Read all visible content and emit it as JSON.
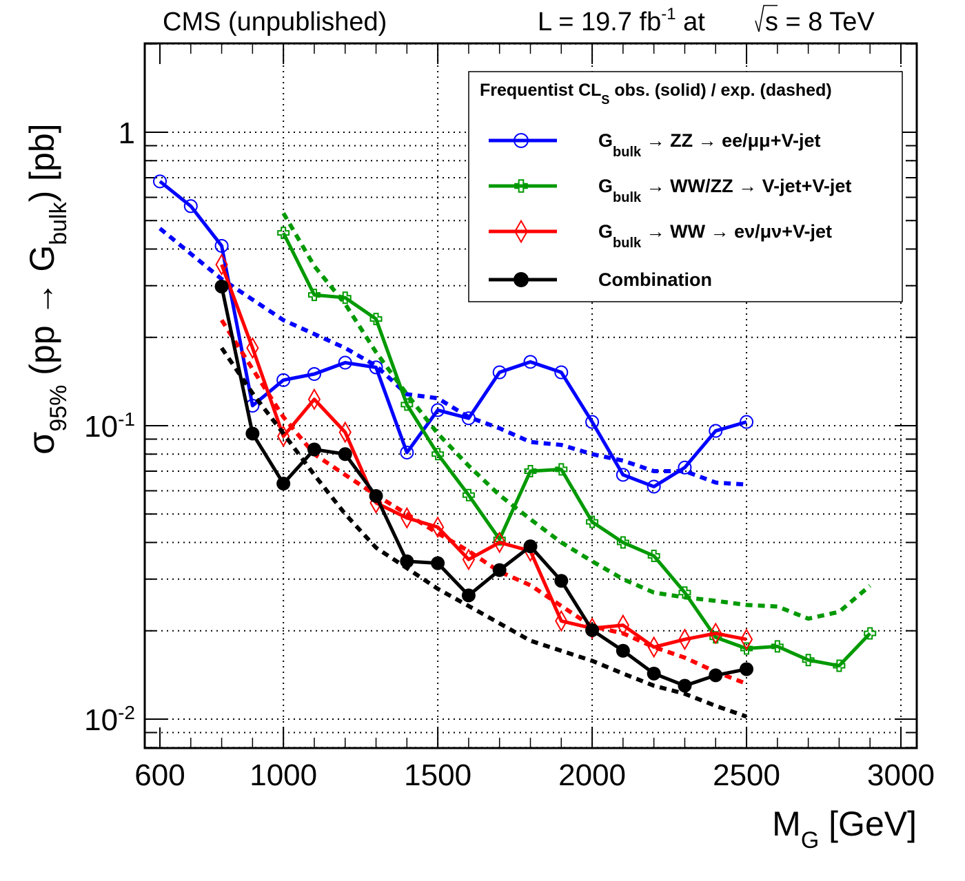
{
  "header": {
    "left": "CMS (unpublished)",
    "right_prefix": "L = 19.7 fb",
    "right_sup": "-1",
    "right_mid": " at ",
    "right_sqrt": "s = 8 TeV"
  },
  "chart_data": {
    "type": "line",
    "title": "",
    "xlabel": "M_G [GeV]",
    "xlabel_main": "M",
    "xlabel_sub": "G",
    "xlabel_unit": " [GeV]",
    "ylabel": "σ95% (pp → Gbulk) [pb]",
    "ylabel_parts": {
      "sigma": "σ",
      "sub95": "95%",
      "mid": " (pp → G",
      "subbulk": "bulk",
      "end": ") [pb]"
    },
    "xlim": [
      550,
      3050
    ],
    "ylim": [
      0.0085,
      2.0
    ],
    "yscale": "log",
    "grid": true,
    "x_ticks": [
      600,
      1000,
      1500,
      2000,
      2500,
      3000
    ],
    "x_tick_labels": [
      "600",
      "1000",
      "1500",
      "2000",
      "2500",
      "3000"
    ],
    "y_ticks": [
      1,
      0.1,
      0.01
    ],
    "y_tick_labels": [
      {
        "base": "1",
        "exp": ""
      },
      {
        "base": "10",
        "exp": "-1"
      },
      {
        "base": "10",
        "exp": "-2"
      }
    ],
    "legend": {
      "position": "top-right",
      "title_main": "Frequentist CL",
      "title_sub": "S",
      "title_rest": " obs. (solid) / exp. (dashed)"
    },
    "series": [
      {
        "name": "Gbulk → ZZ → ee/μμ+V-jet",
        "label_main": "G",
        "label_sub": "bulk",
        "label_rest": " → ZZ → ee/μμ+V-jet",
        "color": "#0000ff",
        "marker": "open-circle",
        "observed": {
          "x": [
            600,
            700,
            800,
            900,
            1000,
            1100,
            1200,
            1300,
            1400,
            1500,
            1600,
            1700,
            1800,
            1900,
            2000,
            2100,
            2200,
            2300,
            2400,
            2500
          ],
          "y": [
            0.68,
            0.56,
            0.41,
            0.117,
            0.143,
            0.15,
            0.164,
            0.158,
            0.081,
            0.113,
            0.106,
            0.152,
            0.165,
            0.152,
            0.103,
            0.068,
            0.062,
            0.072,
            0.096,
            0.103
          ]
        },
        "expected": {
          "x": [
            600,
            800,
            1000,
            1200,
            1300,
            1400,
            1500,
            1600,
            1700,
            1800,
            1900,
            2000,
            2100,
            2200,
            2300,
            2400,
            2500
          ],
          "y": [
            0.47,
            0.316,
            0.229,
            0.184,
            0.16,
            0.128,
            0.124,
            0.107,
            0.098,
            0.088,
            0.086,
            0.08,
            0.076,
            0.07,
            0.07,
            0.064,
            0.063
          ]
        }
      },
      {
        "name": "Gbulk → WW/ZZ → V-jet+V-jet",
        "label_main": "G",
        "label_sub": "bulk",
        "label_rest": " → WW/ZZ → V-jet+V-jet",
        "color": "#009900",
        "marker": "open-cross",
        "observed": {
          "x": [
            1000,
            1100,
            1200,
            1300,
            1400,
            1500,
            1600,
            1700,
            1800,
            1900,
            2000,
            2100,
            2200,
            2300,
            2400,
            2500,
            2600,
            2700,
            2800,
            2900
          ],
          "y": [
            0.454,
            0.279,
            0.273,
            0.231,
            0.118,
            0.08,
            0.058,
            0.041,
            0.07,
            0.071,
            0.047,
            0.04,
            0.036,
            0.027,
            0.019,
            0.0174,
            0.0177,
            0.0159,
            0.0152,
            0.0196
          ]
        },
        "expected": {
          "x": [
            1000,
            1100,
            1200,
            1300,
            1400,
            1500,
            1600,
            1700,
            1800,
            1900,
            2000,
            2100,
            2200,
            2300,
            2400,
            2500,
            2600,
            2700,
            2800,
            2900
          ],
          "y": [
            0.53,
            0.35,
            0.26,
            0.178,
            0.128,
            0.094,
            0.073,
            0.058,
            0.048,
            0.04,
            0.0345,
            0.03,
            0.027,
            0.026,
            0.0253,
            0.0245,
            0.0242,
            0.022,
            0.0232,
            0.0285
          ]
        }
      },
      {
        "name": "Gbulk → WW → eν/μν+V-jet",
        "label_main": "G",
        "label_sub": "bulk",
        "label_rest": " → WW → eν/μν+V-jet",
        "color": "#ff0000",
        "marker": "open-diamond",
        "observed": {
          "x": [
            800,
            900,
            1000,
            1100,
            1200,
            1300,
            1400,
            1500,
            1600,
            1700,
            1800,
            1900,
            2000,
            2100,
            2200,
            2300,
            2400,
            2500
          ],
          "y": [
            0.354,
            0.184,
            0.092,
            0.123,
            0.095,
            0.0546,
            0.0485,
            0.0451,
            0.035,
            0.04,
            0.0374,
            0.0216,
            0.0204,
            0.0209,
            0.0176,
            0.0187,
            0.0196,
            0.0187
          ]
        },
        "expected": {
          "x": [
            800,
            900,
            1000,
            1100,
            1200,
            1300,
            1400,
            1500,
            1600,
            1700,
            1800,
            1900,
            2000,
            2100,
            2200,
            2300,
            2400,
            2500
          ],
          "y": [
            0.229,
            0.156,
            0.107,
            0.08,
            0.068,
            0.058,
            0.05,
            0.043,
            0.0374,
            0.0318,
            0.0286,
            0.0243,
            0.0207,
            0.0196,
            0.0176,
            0.0162,
            0.0145,
            0.0132
          ]
        }
      },
      {
        "name": "Combination",
        "label_main": "Combination",
        "label_sub": "",
        "label_rest": "",
        "color": "#000000",
        "marker": "filled-circle",
        "observed": {
          "x": [
            800,
            900,
            1000,
            1100,
            1200,
            1300,
            1400,
            1500,
            1600,
            1700,
            1800,
            1900,
            2000,
            2100,
            2200,
            2300,
            2400,
            2500
          ],
          "y": [
            0.298,
            0.094,
            0.0635,
            0.083,
            0.08,
            0.0576,
            0.0345,
            0.034,
            0.0264,
            0.0322,
            0.0388,
            0.0296,
            0.0201,
            0.0171,
            0.0143,
            0.013,
            0.0141,
            0.0148
          ]
        },
        "expected": {
          "x": [
            800,
            900,
            1000,
            1100,
            1200,
            1300,
            1400,
            1500,
            1600,
            1700,
            1800,
            1900,
            2000,
            2100,
            2200,
            2300,
            2400,
            2500
          ],
          "y": [
            0.184,
            0.129,
            0.094,
            0.068,
            0.05,
            0.0384,
            0.0327,
            0.0278,
            0.0243,
            0.0212,
            0.0185,
            0.0171,
            0.0158,
            0.0143,
            0.013,
            0.0122,
            0.0111,
            0.0102
          ]
        }
      }
    ]
  }
}
